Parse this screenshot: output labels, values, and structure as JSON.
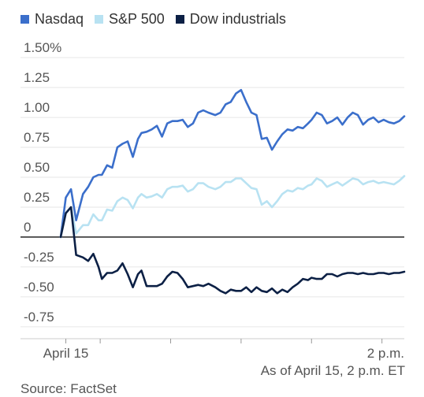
{
  "chart_data": {
    "type": "line",
    "ylim": [
      -0.85,
      1.6
    ],
    "y_ticks": [
      {
        "value": 1.5,
        "label": "1.50%"
      },
      {
        "value": 1.25,
        "label": "1.25"
      },
      {
        "value": 1.0,
        "label": "1.00"
      },
      {
        "value": 0.75,
        "label": "0.75"
      },
      {
        "value": 0.5,
        "label": "0.50"
      },
      {
        "value": 0.25,
        "label": "0.25"
      },
      {
        "value": 0,
        "label": "0"
      },
      {
        "value": -0.25,
        "label": "-0.25"
      },
      {
        "value": -0.5,
        "label": "-0.50"
      },
      {
        "value": -0.75,
        "label": "-0.75"
      }
    ],
    "x_range": [
      0,
      100
    ],
    "x_ticks": [
      {
        "value": 1.5,
        "label": "April 15"
      },
      {
        "value": 11.5,
        "label": ""
      },
      {
        "value": 32,
        "label": ""
      },
      {
        "value": 52.5,
        "label": ""
      },
      {
        "value": 73,
        "label": ""
      },
      {
        "value": 93.5,
        "label": "2 p.m."
      }
    ],
    "grid": true,
    "legend_position": "top-left",
    "series": [
      {
        "name": "Nasdaq",
        "color": "#3b6fcb",
        "x": [
          0,
          1.5,
          3,
          4.5,
          6.5,
          8,
          9.5,
          11,
          12,
          13.5,
          15,
          16.5,
          18,
          19.5,
          21,
          22.5,
          23.5,
          25,
          26.5,
          28,
          29.5,
          31,
          32.5,
          34,
          35.5,
          37,
          38.5,
          40,
          41.5,
          43,
          45,
          46.5,
          48,
          49.5,
          51,
          52.5,
          54,
          55.5,
          57,
          58.5,
          60,
          61.5,
          63,
          64.5,
          66,
          67.5,
          69,
          70.5,
          72,
          73,
          74.5,
          76,
          77.5,
          79,
          80.5,
          82,
          83.5,
          85,
          86.5,
          88,
          89.5,
          91,
          92.5,
          94,
          95.5,
          97,
          98.5,
          100
        ],
        "values": [
          0,
          0.33,
          0.4,
          0.14,
          0.36,
          0.42,
          0.5,
          0.52,
          0.52,
          0.6,
          0.58,
          0.75,
          0.78,
          0.8,
          0.67,
          0.82,
          0.87,
          0.88,
          0.9,
          0.93,
          0.84,
          0.95,
          0.97,
          0.97,
          0.98,
          0.92,
          0.95,
          1.04,
          1.06,
          1.04,
          1.02,
          1.04,
          1.11,
          1.13,
          1.2,
          1.23,
          1.13,
          1.04,
          1.02,
          0.82,
          0.83,
          0.73,
          0.8,
          0.86,
          0.9,
          0.89,
          0.92,
          0.91,
          0.95,
          0.98,
          1.04,
          1.02,
          0.95,
          0.97,
          1.0,
          0.94,
          1.0,
          1.04,
          1.02,
          0.94,
          0.98,
          1.0,
          0.96,
          0.98,
          0.96,
          0.95,
          0.97,
          1.01
        ]
      },
      {
        "name": "S&P 500",
        "color": "#b8e2f2",
        "x": [
          0,
          1.5,
          3,
          4.5,
          6.5,
          8,
          9.5,
          11,
          12,
          13.5,
          15,
          16.5,
          18,
          19.5,
          21,
          22.5,
          23.5,
          25,
          26.5,
          28,
          29.5,
          31,
          32.5,
          34,
          35.5,
          37,
          38.5,
          40,
          41.5,
          43,
          45,
          46.5,
          48,
          49.5,
          51,
          52.5,
          54,
          55.5,
          57,
          58.5,
          60,
          61.5,
          63,
          64.5,
          66,
          67.5,
          69,
          70.5,
          72,
          73,
          74.5,
          76,
          77.5,
          79,
          80.5,
          82,
          83.5,
          85,
          86.5,
          88,
          89.5,
          91,
          92.5,
          94,
          95.5,
          97,
          98.5,
          100
        ],
        "values": [
          0,
          0.2,
          0.25,
          0.03,
          0.1,
          0.1,
          0.19,
          0.14,
          0.14,
          0.23,
          0.22,
          0.3,
          0.33,
          0.31,
          0.24,
          0.33,
          0.36,
          0.33,
          0.34,
          0.36,
          0.33,
          0.4,
          0.42,
          0.42,
          0.43,
          0.38,
          0.4,
          0.45,
          0.45,
          0.42,
          0.4,
          0.42,
          0.46,
          0.46,
          0.49,
          0.49,
          0.45,
          0.41,
          0.4,
          0.27,
          0.3,
          0.25,
          0.3,
          0.36,
          0.39,
          0.38,
          0.41,
          0.4,
          0.43,
          0.44,
          0.49,
          0.47,
          0.42,
          0.44,
          0.46,
          0.43,
          0.46,
          0.49,
          0.48,
          0.44,
          0.46,
          0.47,
          0.45,
          0.46,
          0.45,
          0.44,
          0.47,
          0.51
        ]
      },
      {
        "name": "Dow industrials",
        "color": "#0c2045",
        "x": [
          0,
          1.5,
          3,
          4.5,
          6.5,
          8,
          9.5,
          11,
          12,
          13.5,
          15,
          16.5,
          18,
          19.5,
          21,
          22.5,
          23.5,
          25,
          26.5,
          28,
          29.5,
          31,
          32.5,
          34,
          35.5,
          37,
          38.5,
          40,
          41.5,
          43,
          45,
          46.5,
          48,
          49.5,
          51,
          52.5,
          54,
          55.5,
          57,
          58.5,
          60,
          61.5,
          63,
          64.5,
          66,
          67.5,
          69,
          70.5,
          72,
          73,
          74.5,
          76,
          77.5,
          79,
          80.5,
          82,
          83.5,
          85,
          86.5,
          88,
          89.5,
          91,
          92.5,
          94,
          95.5,
          97,
          98.5,
          100
        ],
        "values": [
          0,
          0.2,
          0.25,
          -0.15,
          -0.17,
          -0.2,
          -0.14,
          -0.25,
          -0.35,
          -0.3,
          -0.3,
          -0.28,
          -0.22,
          -0.31,
          -0.42,
          -0.31,
          -0.28,
          -0.41,
          -0.41,
          -0.41,
          -0.39,
          -0.33,
          -0.29,
          -0.3,
          -0.35,
          -0.42,
          -0.41,
          -0.4,
          -0.41,
          -0.39,
          -0.42,
          -0.45,
          -0.47,
          -0.44,
          -0.45,
          -0.45,
          -0.42,
          -0.46,
          -0.42,
          -0.45,
          -0.46,
          -0.43,
          -0.47,
          -0.44,
          -0.46,
          -0.42,
          -0.39,
          -0.35,
          -0.36,
          -0.34,
          -0.35,
          -0.35,
          -0.31,
          -0.31,
          -0.33,
          -0.31,
          -0.3,
          -0.3,
          -0.31,
          -0.3,
          -0.31,
          -0.31,
          -0.3,
          -0.3,
          -0.31,
          -0.3,
          -0.3,
          -0.29
        ]
      }
    ]
  },
  "note": "As of April 15, 2 p.m. ET",
  "source": "Source: FactSet"
}
